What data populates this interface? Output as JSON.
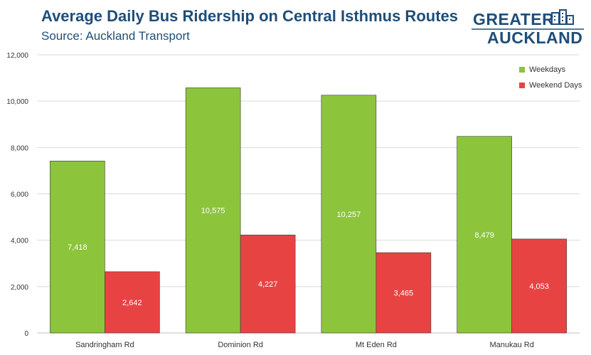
{
  "title": "Average Daily Bus Ridership on Central Isthmus Routes",
  "subtitle": "Source: Auckland Transport",
  "logo": {
    "line1": "GREATER",
    "line2": "AUCKLAND"
  },
  "colors": {
    "weekdays": "#8cc43c",
    "weekend": "#e84343",
    "title": "#1f4e79",
    "grid": "#d9d9d9"
  },
  "chart_data": {
    "type": "bar",
    "title": "Average Daily Bus Ridership on Central Isthmus Routes",
    "subtitle": "Source: Auckland Transport",
    "categories": [
      "Sandringham Rd",
      "Dominion Rd",
      "Mt Eden Rd",
      "Manukau Rd"
    ],
    "series": [
      {
        "name": "Weekdays",
        "values": [
          7418,
          10575,
          10257,
          8479
        ],
        "color": "#8cc43c"
      },
      {
        "name": "Weekend Days",
        "values": [
          2642,
          4227,
          3465,
          4053
        ],
        "color": "#e84343"
      }
    ],
    "data_labels": [
      [
        "7,418",
        "10,575",
        "10,257",
        "8,479"
      ],
      [
        "2,642",
        "4,227",
        "3,465",
        "4,053"
      ]
    ],
    "yticks": [
      "0",
      "2,000",
      "4,000",
      "6,000",
      "8,000",
      "10,000",
      "12,000"
    ],
    "ylim": [
      0,
      12000
    ],
    "grid": true,
    "legend": "top-right",
    "xlabel": "",
    "ylabel": ""
  }
}
